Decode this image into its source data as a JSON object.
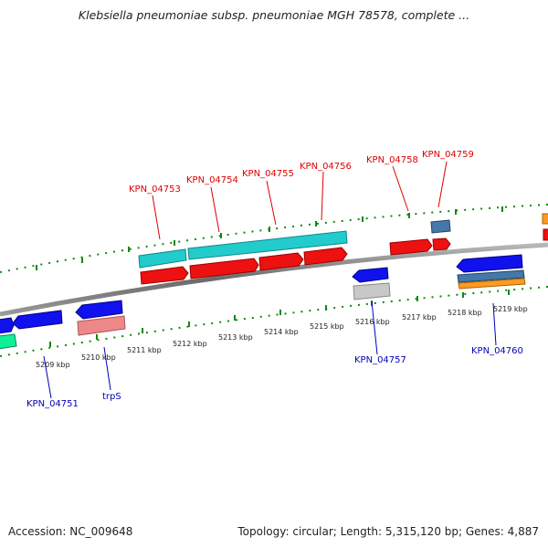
{
  "title": "Klebsiella pneumoniae subsp. pneumoniae MGH 78578, complete ...",
  "footer": {
    "accession": "Accession: NC_009648",
    "stats": "Topology: circular; Length: 5,315,120 bp; Genes: 4,887"
  },
  "colors": {
    "red": "#ee1111",
    "cyan": "#22cccc",
    "blue": "#1111ee",
    "pink": "#ee8888",
    "gray": "#c8c8c8",
    "steel": "#4477aa",
    "orange": "#ff9922",
    "green": "#11ee99",
    "tick": "#118811",
    "label_red": "#dd0000",
    "label_blue": "#0000bb"
  },
  "scale_labels": [
    "5209 kbp",
    "5210 kbp",
    "5211 kbp",
    "5212 kbp",
    "5213 kbp",
    "5214 kbp",
    "5215 kbp",
    "5216 kbp",
    "5217 kbp",
    "5218 kbp",
    "5219 kbp"
  ],
  "gene_labels_top": [
    "KPN_04753",
    "KPN_04754",
    "KPN_04755",
    "KPN_04756",
    "KPN_04758",
    "KPN_04759"
  ],
  "gene_labels_bottom": [
    "KPN_04751",
    "trpS",
    "KPN_04757",
    "KPN_04760"
  ]
}
